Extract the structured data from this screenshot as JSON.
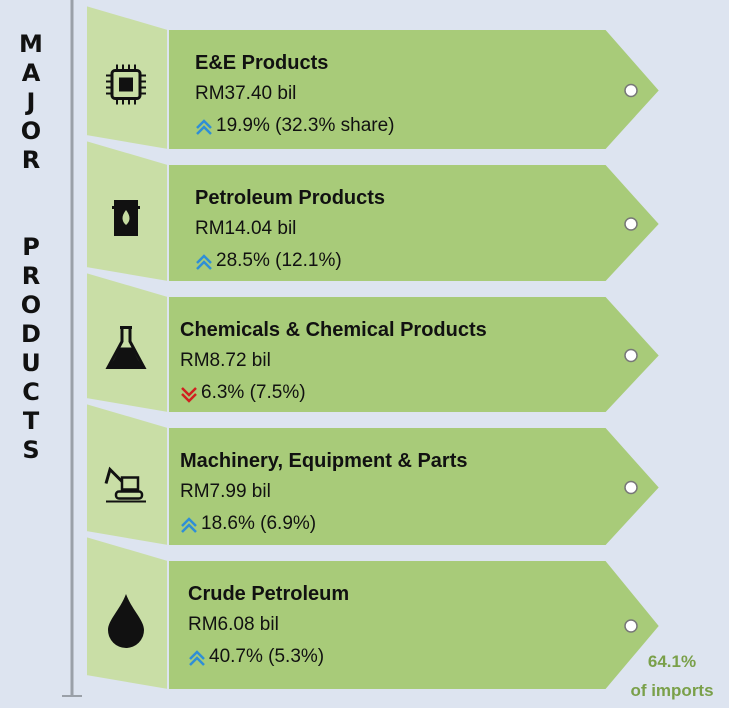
{
  "side_label": {
    "words": [
      "MAJOR",
      "PRODUCTS"
    ]
  },
  "items": [
    {
      "name": "E&E Products",
      "value": "RM37.40 bil",
      "direction": "up",
      "change": "19.9%",
      "share": "(32.3% share)"
    },
    {
      "name": "Petroleum Products",
      "value": "RM14.04 bil",
      "direction": "up",
      "change": "28.5%",
      "share": "(12.1%)"
    },
    {
      "name": "Chemicals & Chemical Products",
      "value": "RM8.72 bil",
      "direction": "down",
      "change": "6.3%",
      "share": "(7.5%)"
    },
    {
      "name": "Machinery, Equipment & Parts",
      "value": "RM7.99 bil",
      "direction": "up",
      "change": "18.6%",
      "share": "(6.9%)"
    },
    {
      "name": "Crude Petroleum",
      "value": "RM6.08 bil",
      "direction": "up",
      "change": "40.7%",
      "share": "(5.3%)"
    }
  ],
  "footer": {
    "percent": "64.1%",
    "caption": "of imports"
  }
}
